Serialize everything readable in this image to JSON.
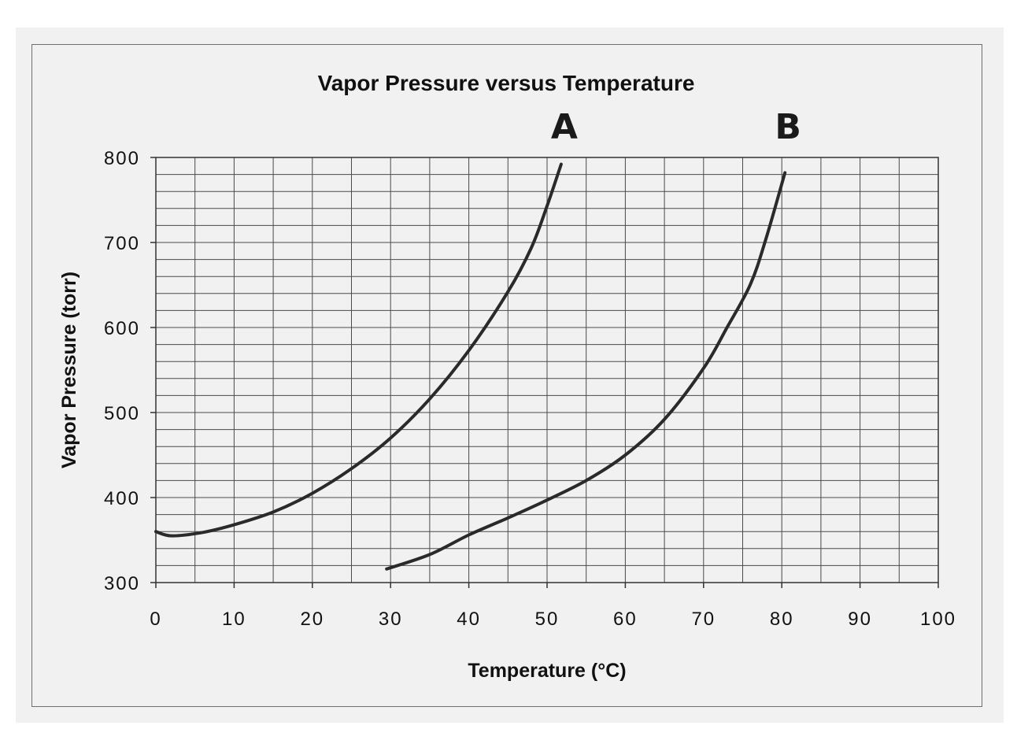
{
  "chart_data": {
    "type": "line",
    "title": "Vapor Pressure versus Temperature",
    "xlabel": "Temperature (°C)",
    "ylabel": "Vapor Pressure (torr)",
    "xlim": [
      0,
      100
    ],
    "ylim": [
      300,
      800
    ],
    "x_ticks": [
      "0",
      "10",
      "20",
      "30",
      "40",
      "50",
      "60",
      "70",
      "80",
      "90",
      "100"
    ],
    "y_ticks": [
      "300",
      "400",
      "500",
      "600",
      "700",
      "800"
    ],
    "grid": true,
    "series": [
      {
        "name": "A",
        "x": [
          0,
          2,
          6,
          10,
          15,
          20,
          25,
          30,
          35,
          40,
          45,
          48,
          50,
          51.8
        ],
        "y": [
          360,
          355,
          359,
          368,
          383,
          405,
          434,
          470,
          516,
          573,
          642,
          694,
          743,
          792
        ]
      },
      {
        "name": "B",
        "x": [
          29.5,
          35,
          40,
          45,
          50,
          55,
          60,
          65,
          70,
          73,
          76,
          78,
          80.4
        ],
        "y": [
          316,
          333,
          356,
          376,
          397,
          420,
          450,
          492,
          552,
          600,
          651,
          705,
          782
        ]
      }
    ],
    "series_color": "#2a2a2a"
  }
}
